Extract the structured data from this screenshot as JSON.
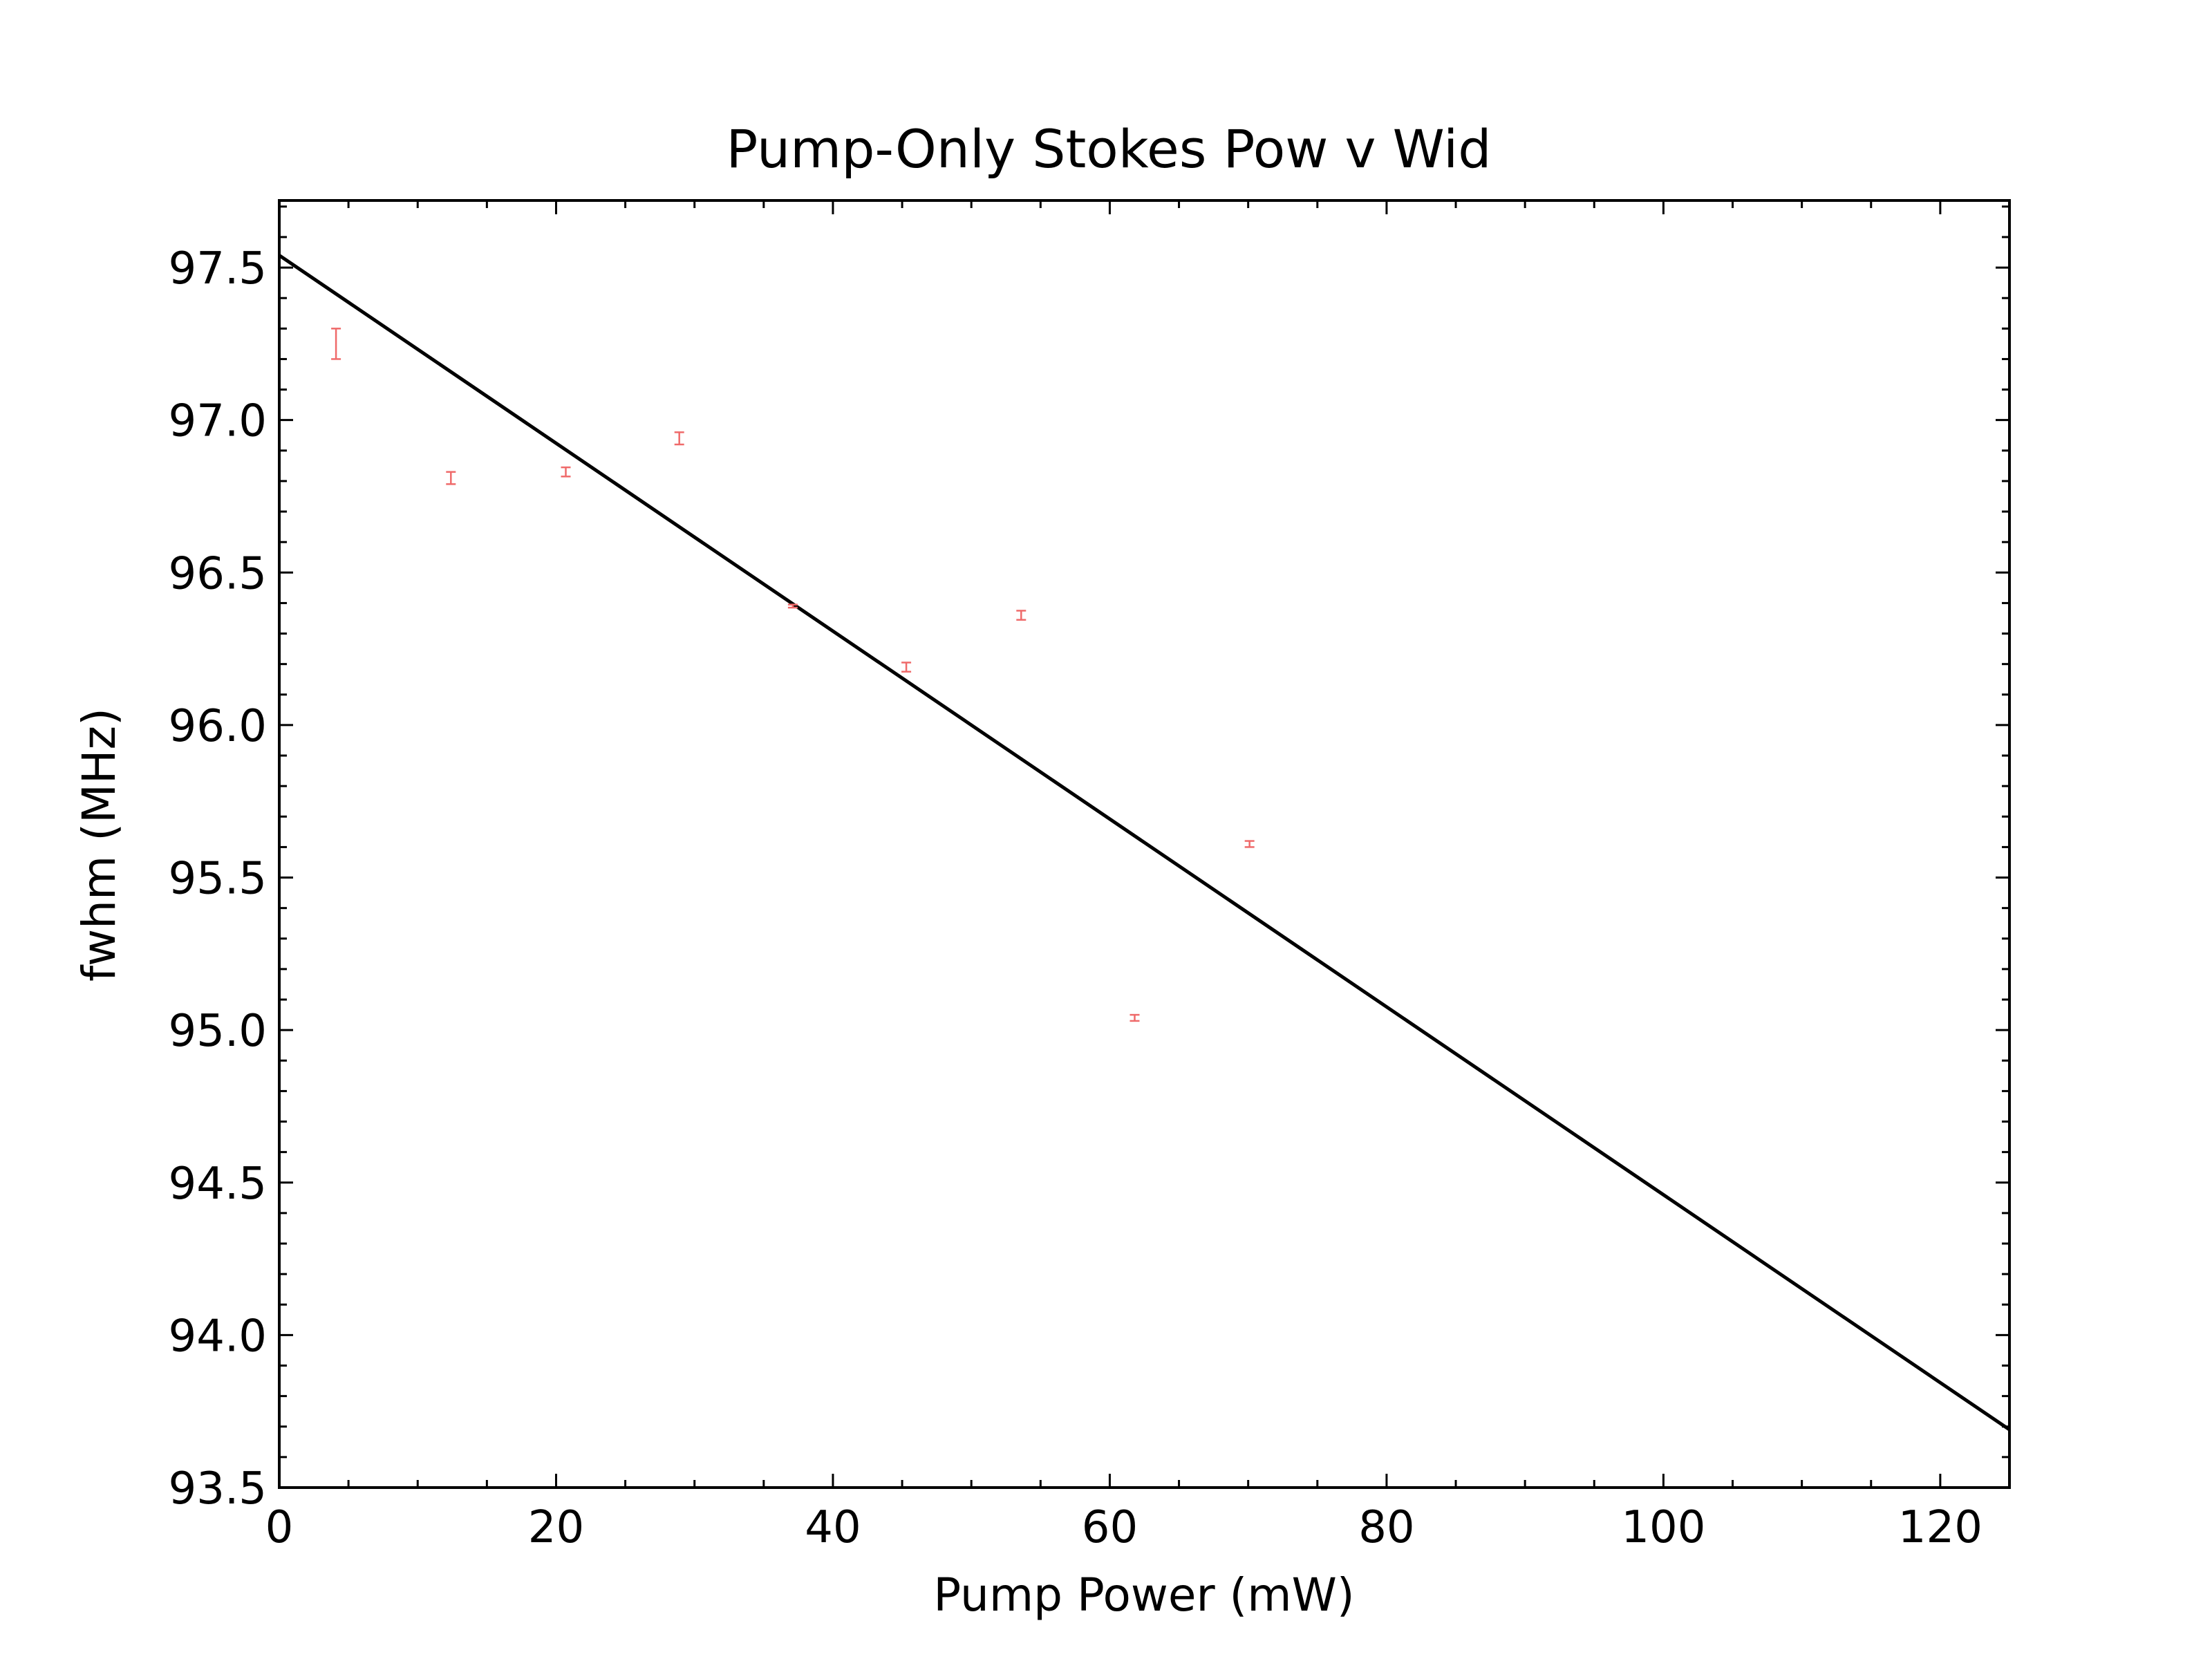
{
  "chart_data": {
    "type": "scatter",
    "title": "Pump-Only Stokes Pow v Wid",
    "xlabel": "Pump Power (mW)",
    "ylabel": "fwhm (MHz)",
    "xlim": [
      0,
      125
    ],
    "ylim": [
      93.5,
      97.72
    ],
    "x_ticks": [
      0,
      20,
      40,
      60,
      80,
      100,
      120
    ],
    "x_tick_labels": [
      "0",
      "20",
      "40",
      "60",
      "80",
      "100",
      "120"
    ],
    "y_ticks": [
      93.5,
      94.0,
      94.5,
      95.0,
      95.5,
      96.0,
      96.5,
      97.0,
      97.5
    ],
    "y_tick_labels": [
      "93.5",
      "94.0",
      "94.5",
      "95.0",
      "95.5",
      "96.0",
      "96.5",
      "97.0",
      "97.5"
    ],
    "x_minor_step": 5,
    "y_minor_step": 0.1,
    "grid": false,
    "legend": "none",
    "series": [
      {
        "type": "errorbar",
        "color": "#ef6a6a",
        "x": [
          4.1,
          12.4,
          20.7,
          28.9,
          37.1,
          45.3,
          53.6,
          61.8,
          70.1
        ],
        "y": [
          97.25,
          96.81,
          96.83,
          96.94,
          96.39,
          96.19,
          96.36,
          95.04,
          95.61
        ],
        "yerr": [
          0.05,
          0.02,
          0.015,
          0.02,
          0.005,
          0.015,
          0.015,
          0.01,
          0.01
        ]
      },
      {
        "type": "line",
        "color": "#000000",
        "x": [
          0,
          125
        ],
        "y": [
          97.54,
          93.69
        ]
      }
    ]
  }
}
